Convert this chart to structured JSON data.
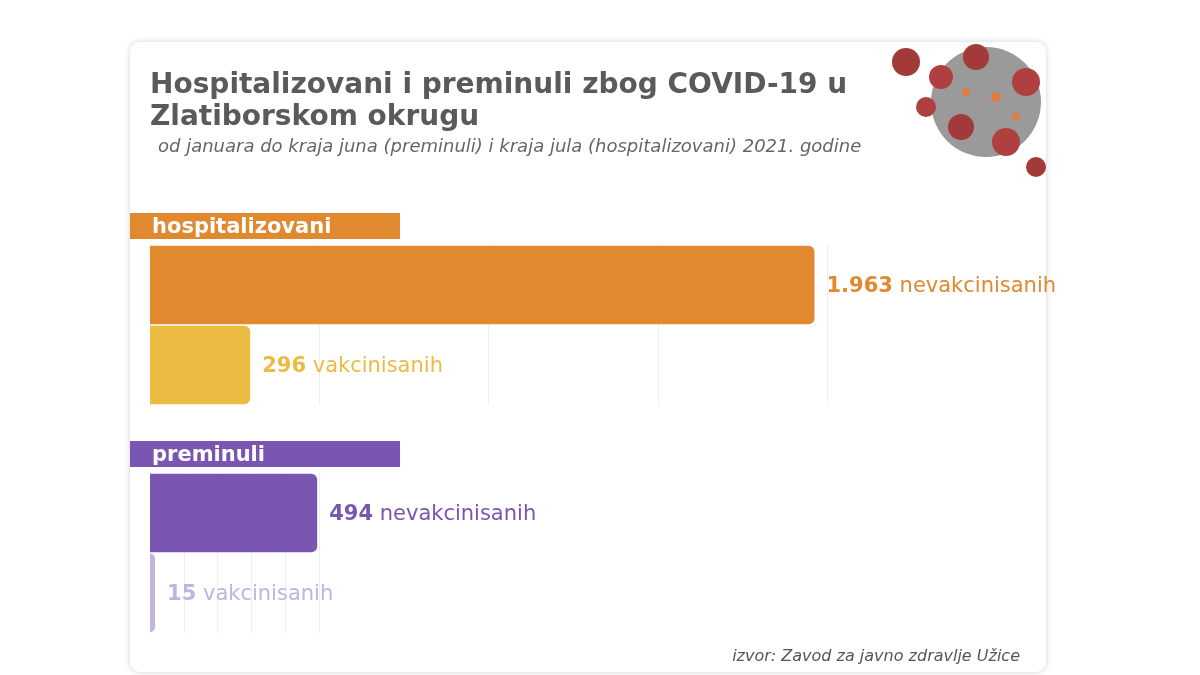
{
  "chart_data": [
    {
      "type": "other",
      "title": "Hospitalizovani i preminuli zbog COVID-19 u Zlatiborskom okrugu",
      "subtitle": "od januara do kraja juna (preminuli) i kraja jula (hospitalizovani) 2021. godine"
    },
    {
      "type": "bar",
      "orientation": "horizontal",
      "title": "hospitalizovani",
      "categories": [
        null,
        null
      ],
      "values": [
        1963,
        296
      ],
      "colors": [
        "#e0892f",
        "#ebbb42"
      ],
      "value_labels": [
        "1.963 nevakcinisanih",
        "296 vakcinisanih"
      ],
      "xlim": [
        0,
        2000
      ],
      "xticks": [
        {
          "value": 0,
          "label": null
        },
        {
          "value": 500,
          "label": null
        },
        {
          "value": 1000,
          "label": null
        },
        {
          "value": 1500,
          "label": null
        },
        {
          "value": 2000,
          "label": null
        }
      ],
      "grid": "x"
    },
    {
      "type": "bar",
      "orientation": "horizontal",
      "title": "preminuli",
      "categories": [
        null,
        null
      ],
      "values": [
        494,
        15
      ],
      "colors": [
        "#7a56b3",
        "#c2b3df"
      ],
      "value_labels": [
        "494 nevakcinisanih",
        "15 vakcinisanih"
      ],
      "xlim": [
        0,
        500
      ],
      "xticks": [
        {
          "value": 0,
          "label": null
        },
        {
          "value": 100,
          "label": null
        },
        {
          "value": 200,
          "label": null
        },
        {
          "value": 300,
          "label": null
        },
        {
          "value": 400,
          "label": null
        },
        {
          "value": 500,
          "label": null
        }
      ],
      "grid": "x",
      "annotations": [
        "izvor: Zavod za javno zdravlje Užice"
      ]
    }
  ]
}
